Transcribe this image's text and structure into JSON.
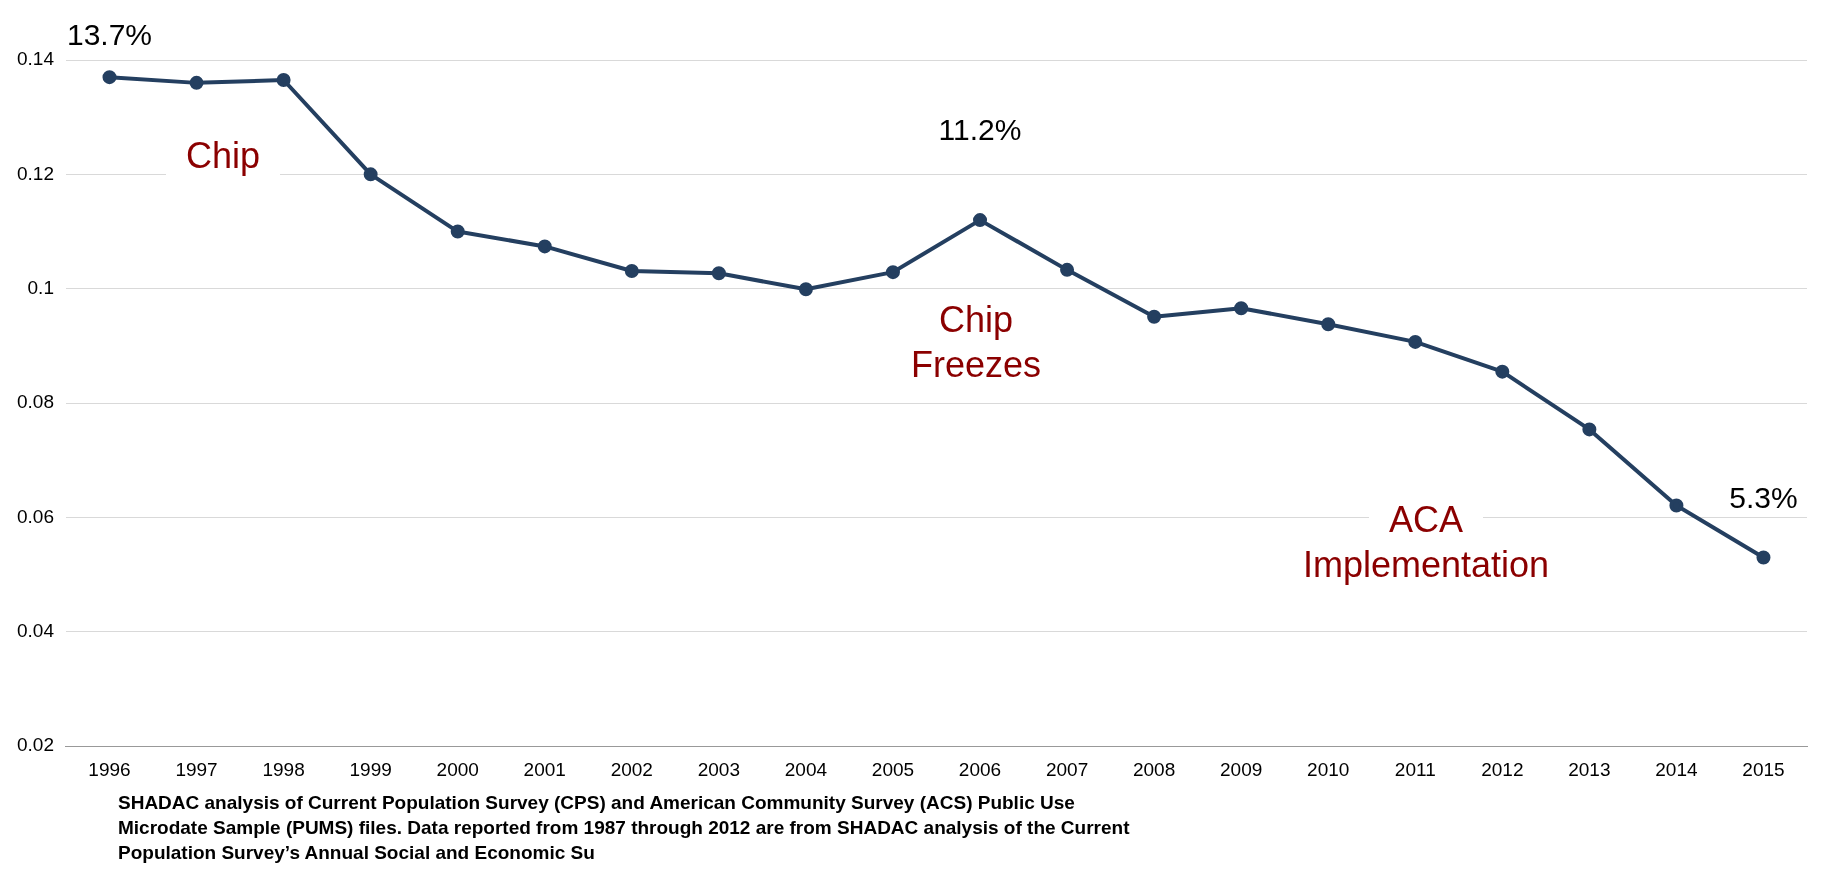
{
  "chart_data": {
    "type": "line",
    "categories": [
      "1996",
      "1997",
      "1998",
      "1999",
      "2000",
      "2001",
      "2002",
      "2003",
      "2004",
      "2005",
      "2006",
      "2007",
      "2008",
      "2009",
      "2010",
      "2011",
      "2012",
      "2013",
      "2014",
      "2015"
    ],
    "series": [
      {
        "color": "#243f60",
        "values": [
          0.137,
          0.136,
          0.1365,
          0.12,
          0.11,
          0.1074,
          0.1031,
          0.1027,
          0.0999,
          0.1029,
          0.112,
          0.1033,
          0.0951,
          0.0966,
          0.0938,
          0.0907,
          0.0855,
          0.0754,
          0.0621,
          0.053
        ]
      }
    ],
    "ylim": [
      0.02,
      0.14
    ],
    "yticks": [
      0.02,
      0.04,
      0.06,
      0.08,
      {
        "value": 0.1,
        "label": "0.1"
      },
      0.12,
      0.14
    ],
    "grid": "y",
    "legend": false,
    "marker": "circle",
    "line_style": "solid",
    "annotations": [
      {
        "text": "13.7%",
        "x": "1996",
        "y": 0.137
      },
      {
        "text": "11.2%",
        "x": "2006",
        "y": 0.112
      },
      {
        "text": "5.3%",
        "x": "2015",
        "y": 0.053
      },
      "Chip",
      "Chip\nFreezes",
      "ACA\nImplementation",
      "SHADAC analysis of Current Population Survey (CPS) and American Community Survey (ACS) Public Use\nMicrodate Sample (PUMS) files. Data reported from 1987 through 2012 are from SHADAC analysis of the Current\nPopulation Survey’s Annual Social and Economic Su"
    ]
  }
}
